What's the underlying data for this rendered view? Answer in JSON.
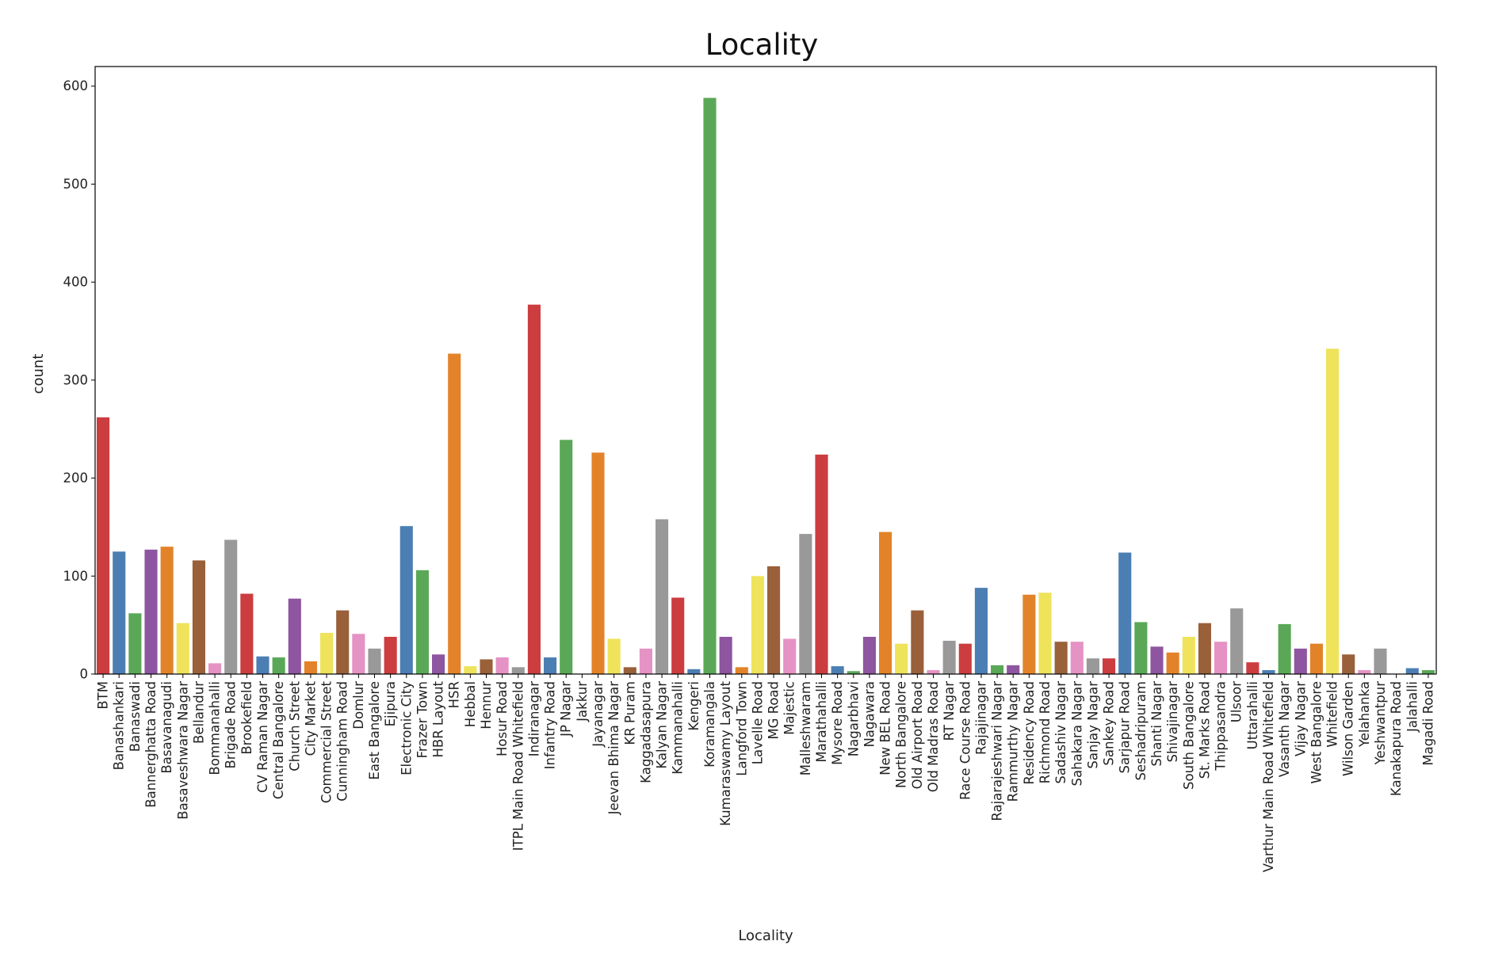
{
  "chart_data": {
    "type": "bar",
    "title": "Locality",
    "xlabel": "Locality",
    "ylabel": "count",
    "ylim": [
      0,
      620
    ],
    "yticks": [
      0,
      100,
      200,
      300,
      400,
      500,
      600
    ],
    "grid": false,
    "palette": [
      "#cc3d3f",
      "#4b7fb3",
      "#5aa857",
      "#8e55a0",
      "#e38329",
      "#eee35a",
      "#99603a",
      "#e592c4",
      "#999999"
    ],
    "categories": [
      "BTM",
      "Banashankari",
      "Banaswadi",
      "Bannerghatta Road",
      "Basavanagudi",
      "Basaveshwara Nagar",
      "Bellandur",
      "Bommanahalli",
      "Brigade Road",
      "Brookefield",
      "CV Raman Nagar",
      "Central Bangalore",
      "Church Street",
      "City Market",
      "Commercial Street",
      "Cunningham Road",
      "Domlur",
      "East Bangalore",
      "Ejipura",
      "Electronic City",
      "Frazer Town",
      "HBR Layout",
      "HSR",
      "Hebbal",
      "Hennur",
      "Hosur Road",
      "ITPL Main Road Whitefield",
      "Indiranagar",
      "Infantry Road",
      "JP Nagar",
      "Jakkur",
      "Jayanagar",
      "Jeevan Bhima Nagar",
      "KR Puram",
      "Kaggadasapura",
      "Kalyan Nagar",
      "Kammanahalli",
      "Kengeri",
      "Koramangala",
      "Kumaraswamy Layout",
      "Langford Town",
      "Lavelle Road",
      "MG Road",
      "Majestic",
      "Malleshwaram",
      "Marathahalli",
      "Mysore Road",
      "Nagarbhavi",
      "Nagawara",
      "New BEL Road",
      "North Bangalore",
      "Old Airport Road",
      "Old Madras Road",
      "RT Nagar",
      "Race Course Road",
      "Rajajinagar",
      "Rajarajeshwari Nagar",
      "Rammurthy Nagar",
      "Residency Road",
      "Richmond Road",
      "Sadashiv Nagar",
      "Sahakara Nagar",
      "Sanjay Nagar",
      "Sankey Road",
      "Sarjapur Road",
      "Seshadripuram",
      "Shanti Nagar",
      "Shivajinagar",
      "South Bangalore",
      "St. Marks Road",
      "Thippasandra",
      "Ulsoor",
      "Uttarahalli",
      "Varthur Main Road Whitefield",
      "Vasanth Nagar",
      "Vijay Nagar",
      "West Bangalore",
      "Whitefield",
      "Wilson Garden",
      "Yelahanka",
      "Yeshwantpur",
      "Kanakapura Road",
      "Jalahalli",
      "Magadi Road"
    ],
    "values": [
      262,
      125,
      62,
      127,
      130,
      52,
      116,
      11,
      137,
      82,
      18,
      17,
      77,
      13,
      42,
      65,
      41,
      26,
      38,
      151,
      106,
      20,
      327,
      8,
      15,
      17,
      7,
      377,
      17,
      239,
      0,
      226,
      36,
      7,
      26,
      158,
      78,
      5,
      588,
      38,
      7,
      100,
      110,
      36,
      143,
      224,
      8,
      3,
      38,
      145,
      31,
      65,
      4,
      34,
      31,
      88,
      9,
      9,
      81,
      83,
      33,
      33,
      16,
      16,
      124,
      53,
      28,
      22,
      38,
      52,
      33,
      67,
      12,
      4,
      51,
      26,
      31,
      332,
      20,
      4,
      26,
      0,
      6,
      4
    ]
  }
}
